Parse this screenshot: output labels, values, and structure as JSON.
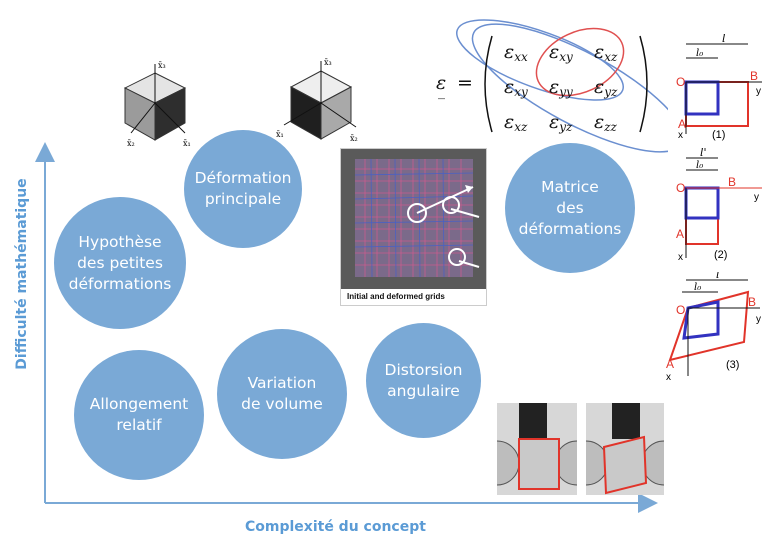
{
  "axes": {
    "x_label": "Complexité du concept",
    "y_label": "Difficulté mathématique",
    "color": "#5b9bd5"
  },
  "concepts": [
    {
      "id": "principale",
      "label": "Déformation\nprincipale"
    },
    {
      "id": "petites",
      "label": "Hypothèse\ndes petites\ndéformations"
    },
    {
      "id": "matrice",
      "label": "Matrice\ndes\ndéformations"
    },
    {
      "id": "allongement",
      "label": "Allongement\nrelatif"
    },
    {
      "id": "volume",
      "label": "Variation\nde volume"
    },
    {
      "id": "distorsion",
      "label": "Distorsion\nangulaire"
    }
  ],
  "bubble_color": "#7aa9d6",
  "grid_image": {
    "caption": "Initial and deformed grids"
  },
  "matrix": {
    "symbol": "ε",
    "equals": "=",
    "cells": [
      {
        "sym": "ε",
        "sub": "xx"
      },
      {
        "sym": "ε",
        "sub": "xy"
      },
      {
        "sym": "ε",
        "sub": "xz"
      },
      {
        "sym": "ε",
        "sub": "xy"
      },
      {
        "sym": "ε",
        "sub": "yy"
      },
      {
        "sym": "ε",
        "sub": "yz"
      },
      {
        "sym": "ε",
        "sub": "xz"
      },
      {
        "sym": "ε",
        "sub": "yz"
      },
      {
        "sym": "ε",
        "sub": "zz"
      }
    ]
  },
  "principal_axes_labels": {
    "top": "x̄₃",
    "left": "x̄₂",
    "right": "x̄₁"
  },
  "deformation_sketches": [
    {
      "number": "(1)",
      "dim_outer": "l",
      "dim_inner": "l₀",
      "point_o": "O",
      "point_a": "A",
      "point_b": "B",
      "axis_x": "x",
      "axis_y": "y"
    },
    {
      "number": "(2)",
      "dim_outer": "l'",
      "dim_inner": "l₀",
      "point_o": "O",
      "point_a": "A",
      "point_b": "B",
      "axis_x": "x",
      "axis_y": "y"
    },
    {
      "number": "(3)",
      "dim_outer": "l",
      "dim_inner": "l₀",
      "point_o": "O",
      "point_a": "A",
      "point_b": "B",
      "axis_x": "x",
      "axis_y": "y"
    }
  ]
}
